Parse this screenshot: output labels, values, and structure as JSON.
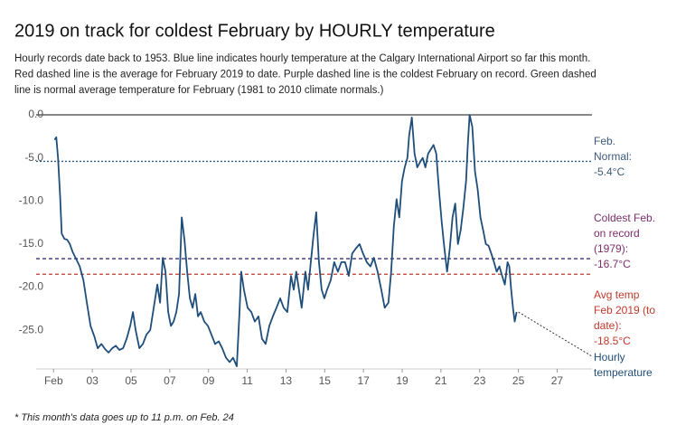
{
  "chart_data": {
    "type": "line",
    "title": "2019 on track for coldest February by HOURLY temperature",
    "subtitle_lines": [
      "Hourly records date back to 1953. Blue line indicates hourly temperature at the Calgary International Airport so far this month.",
      "Red dashed line is the average for February 2019 to date. Purple dashed line is the coldest February on record. Green dashed",
      "line is normal average temperature for February (1981 to 2010 climate normals.)"
    ],
    "footnote": "* This month's data goes up to 11 p.m. on Feb. 24",
    "xlim": [
      0.1,
      28.8
    ],
    "ylim": [
      -29.5,
      0
    ],
    "xticks": [
      {
        "value": 1,
        "label": "Feb"
      },
      {
        "value": 3,
        "label": "03"
      },
      {
        "value": 5,
        "label": "05"
      },
      {
        "value": 7,
        "label": "07"
      },
      {
        "value": 9,
        "label": "09"
      },
      {
        "value": 11,
        "label": "11"
      },
      {
        "value": 13,
        "label": "13"
      },
      {
        "value": 15,
        "label": "15"
      },
      {
        "value": 17,
        "label": "17"
      },
      {
        "value": 19,
        "label": "19"
      },
      {
        "value": 21,
        "label": "21"
      },
      {
        "value": 23,
        "label": "23"
      },
      {
        "value": 25,
        "label": "25"
      },
      {
        "value": 27,
        "label": "27"
      }
    ],
    "yticks": [
      {
        "value": 0,
        "label": "0.0"
      },
      {
        "value": -5,
        "label": "-5.0"
      },
      {
        "value": -10,
        "label": "-10.0"
      },
      {
        "value": -15,
        "label": "-15.0"
      },
      {
        "value": -20,
        "label": "-20.0"
      },
      {
        "value": -25,
        "label": "-25.0"
      }
    ],
    "series": [
      {
        "name": "Hourly temperature",
        "color": "#1f4e7a",
        "x": [
          1.05,
          1.14,
          1.23,
          1.33,
          1.42,
          1.56,
          1.7,
          1.84,
          1.98,
          2.16,
          2.35,
          2.54,
          2.72,
          2.91,
          3.1,
          3.28,
          3.47,
          3.66,
          3.84,
          4.03,
          4.21,
          4.4,
          4.59,
          4.77,
          4.96,
          5.1,
          5.24,
          5.43,
          5.61,
          5.8,
          5.99,
          6.17,
          6.36,
          6.5,
          6.64,
          6.78,
          6.92,
          7.06,
          7.2,
          7.34,
          7.48,
          7.62,
          7.76,
          7.9,
          8.04,
          8.18,
          8.32,
          8.46,
          8.6,
          8.78,
          8.97,
          9.15,
          9.34,
          9.53,
          9.71,
          9.9,
          10.09,
          10.27,
          10.46,
          10.6,
          10.69,
          10.83,
          11.02,
          11.21,
          11.39,
          11.58,
          11.76,
          11.95,
          12.14,
          12.32,
          12.51,
          12.7,
          12.88,
          13.07,
          13.26,
          13.4,
          13.53,
          13.67,
          13.81,
          14.0,
          14.14,
          14.28,
          14.42,
          14.56,
          14.7,
          14.84,
          14.98,
          15.12,
          15.31,
          15.49,
          15.68,
          15.86,
          16.05,
          16.24,
          16.42,
          16.61,
          16.8,
          16.98,
          17.17,
          17.36,
          17.54,
          17.73,
          17.92,
          18.1,
          18.29,
          18.43,
          18.57,
          18.71,
          18.85,
          18.99,
          19.13,
          19.27,
          19.36,
          19.5,
          19.64,
          19.78,
          19.92,
          20.06,
          20.2,
          20.34,
          20.48,
          20.62,
          20.76,
          20.9,
          21.04,
          21.18,
          21.32,
          21.46,
          21.6,
          21.74,
          21.88,
          22.02,
          22.16,
          22.3,
          22.39,
          22.48,
          22.62,
          22.76,
          22.9,
          23.04,
          23.18,
          23.32,
          23.46,
          23.6,
          23.74,
          23.88,
          24.02,
          24.16,
          24.3,
          24.44,
          24.53,
          24.63,
          24.72,
          24.81,
          24.91
        ],
        "values": [
          -2.9,
          -2.6,
          -5.0,
          -9.2,
          -13.8,
          -14.4,
          -14.5,
          -15.0,
          -15.9,
          -16.7,
          -17.6,
          -19.2,
          -21.8,
          -24.5,
          -25.7,
          -27.1,
          -26.6,
          -27.2,
          -27.6,
          -27.1,
          -26.8,
          -27.3,
          -27.1,
          -26.0,
          -24.5,
          -22.9,
          -25.0,
          -27.1,
          -26.6,
          -25.5,
          -25.0,
          -22.4,
          -19.7,
          -21.8,
          -16.6,
          -18.2,
          -22.9,
          -24.5,
          -24.0,
          -22.9,
          -20.8,
          -11.9,
          -14.5,
          -18.2,
          -21.3,
          -22.4,
          -20.8,
          -23.4,
          -22.9,
          -24.0,
          -24.5,
          -25.5,
          -26.6,
          -26.3,
          -27.1,
          -28.2,
          -28.7,
          -28.2,
          -29.2,
          -22.9,
          -18.2,
          -20.3,
          -22.4,
          -22.9,
          -24.0,
          -23.4,
          -26.0,
          -26.6,
          -24.5,
          -23.4,
          -22.4,
          -21.3,
          -22.4,
          -22.9,
          -18.7,
          -20.3,
          -18.2,
          -20.3,
          -22.4,
          -18.2,
          -20.3,
          -17.1,
          -14.0,
          -11.3,
          -17.1,
          -20.3,
          -21.3,
          -20.3,
          -19.2,
          -17.1,
          -18.2,
          -17.1,
          -17.1,
          -18.7,
          -16.1,
          -15.5,
          -15.0,
          -16.1,
          -17.1,
          -17.6,
          -16.6,
          -18.2,
          -20.3,
          -22.4,
          -21.8,
          -18.2,
          -12.9,
          -9.8,
          -11.9,
          -7.7,
          -6.1,
          -5.0,
          -2.4,
          -0.3,
          -4.5,
          -6.1,
          -5.5,
          -5.0,
          -6.1,
          -4.5,
          -4.0,
          -3.5,
          -4.5,
          -8.7,
          -12.4,
          -15.5,
          -18.2,
          -15.5,
          -11.9,
          -10.3,
          -15.0,
          -13.4,
          -10.8,
          -7.7,
          -3.5,
          0,
          -1.4,
          -6.6,
          -8.7,
          -11.9,
          -13.4,
          -15.0,
          -15.2,
          -16.1,
          -17.1,
          -18.2,
          -17.6,
          -18.7,
          -19.7,
          -17.1,
          -17.6,
          -20.3,
          -22.4,
          -24.0,
          -22.9
        ]
      }
    ],
    "series_label_lines": [
      "Hourly",
      "temperature"
    ],
    "reference_lines": [
      {
        "value": -5.4,
        "color": "#2c5d8a",
        "text_color": "#3d5a7a",
        "dash": "2,2",
        "label_lines": [
          "Feb.",
          "Normal:",
          "-5.4°C"
        ]
      },
      {
        "value": -16.7,
        "color": "#3b2a78",
        "text_color": "#7b2d6b",
        "dash": "4,3",
        "label_lines": [
          "Coldest Feb.",
          "on record",
          "(1979):",
          "-16.7°C"
        ]
      },
      {
        "value": -18.5,
        "color": "#c0392b",
        "text_color": "#c0392b",
        "dash": "4,3",
        "label_lines": [
          "Avg temp",
          "Feb 2019 (to",
          "date):",
          "-18.5°C"
        ]
      }
    ]
  }
}
